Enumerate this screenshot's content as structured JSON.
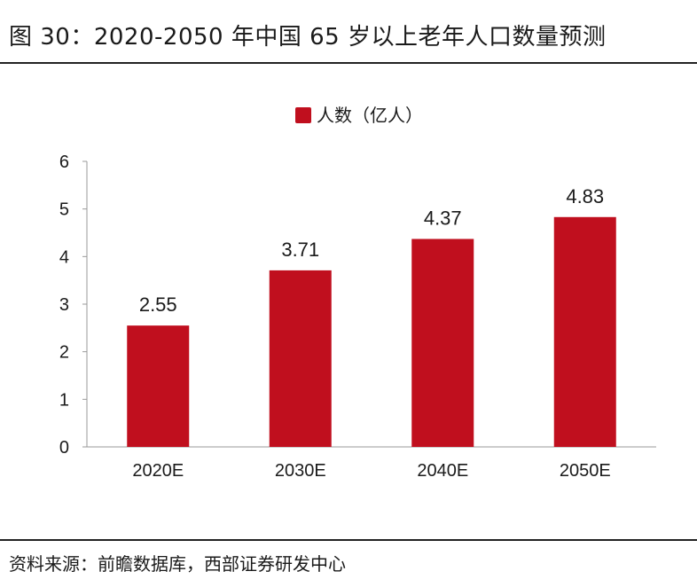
{
  "header": {
    "figure_title": "图 30：2020-2050 年中国 65 岁以上老年人口数量预测"
  },
  "footer": {
    "source": "资料来源：前瞻数据库，西部证券研发中心"
  },
  "chart_data": {
    "type": "bar",
    "categories": [
      "2020E",
      "2030E",
      "2040E",
      "2050E"
    ],
    "series": [
      {
        "name": "人数（亿人）",
        "values": [
          2.55,
          3.71,
          4.37,
          4.83
        ],
        "color": "#C00F1E"
      }
    ],
    "data_labels": [
      "2.55",
      "3.71",
      "4.37",
      "4.83"
    ],
    "yticks": [
      "0",
      "1",
      "2",
      "3",
      "4",
      "5",
      "6"
    ],
    "ylim": [
      0,
      6
    ],
    "grid": false,
    "legend_position": "top-center",
    "xlabel": "",
    "ylabel": ""
  }
}
